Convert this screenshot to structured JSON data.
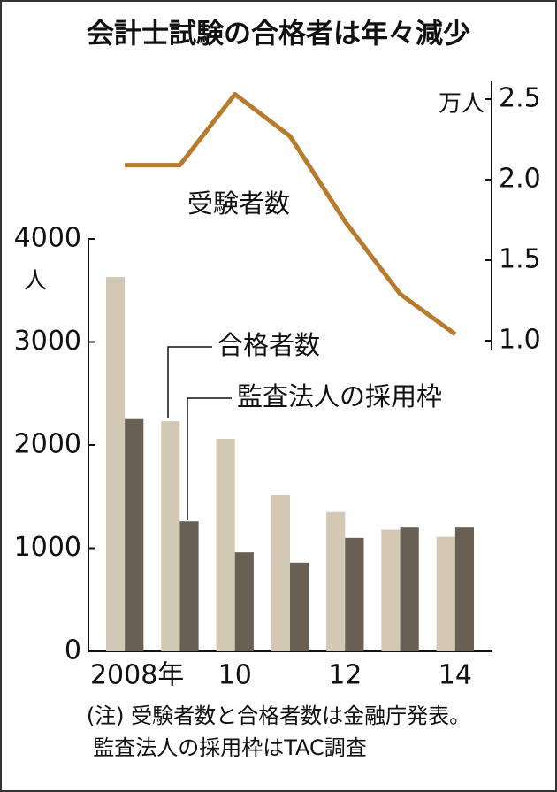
{
  "chart_data": {
    "type": "bar",
    "title": "会計士試験の合格者は年々減少",
    "categories": [
      "2008年",
      null,
      "10",
      null,
      "12",
      null,
      "14"
    ],
    "y_unit": "人",
    "y2_unit": "万人",
    "ylim": [
      0,
      4000
    ],
    "yticks": [
      0,
      1000,
      2000,
      3000,
      4000
    ],
    "y2lim": [
      1,
      2.5
    ],
    "y2ticks": [
      {
        "value": 1,
        "label": "1.0"
      },
      1.5,
      {
        "value": 2,
        "label": "2.0"
      },
      2.5
    ],
    "series": [
      {
        "name": "合格者数",
        "color": "#d2c8b3",
        "values": [
          3630,
          2230,
          2060,
          1520,
          1350,
          1180,
          1110
        ]
      },
      {
        "name": "監査法人の採用枠",
        "color": "#6a5f54",
        "values": [
          2260,
          1260,
          960,
          860,
          1100,
          1200,
          1200
        ]
      },
      {
        "name": "受験者数",
        "type": "line",
        "axis": "y2",
        "color": "#b87a2c",
        "values": [
          2.09,
          2.09,
          2.53,
          2.27,
          1.74,
          1.29,
          1.04
        ]
      }
    ],
    "notes": [
      "(注) 受験者数と合格者数は金融庁発表。",
      "監査法人の採用枠はTAC調査"
    ]
  }
}
